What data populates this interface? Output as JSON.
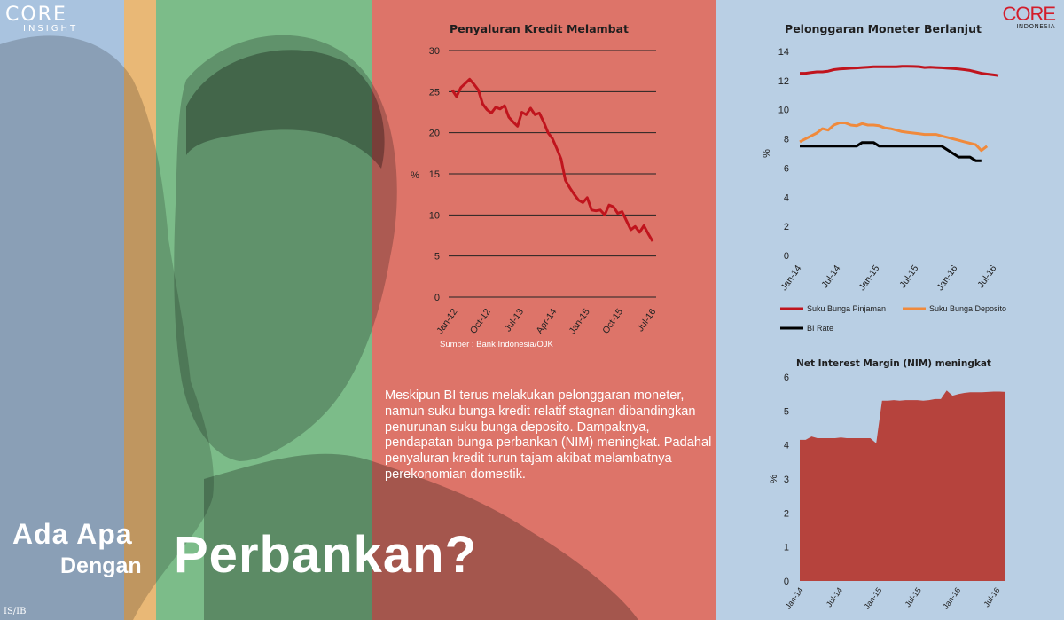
{
  "brand": {
    "core": "CORE",
    "insight": "INSIGHT",
    "logo": "CORE",
    "logo_sub": "INDONESIA"
  },
  "headline": {
    "line1": "Ada Apa",
    "line2": "Dengan",
    "line3": "Perbankan?"
  },
  "description": "Meskipun BI terus melakukan pelonggaran moneter, namun suku bunga kredit relatif stagnan dibandingkan penurunan suku bunga deposito. Dampaknya, pendapatan bunga perbankan (NIM) meningkat. Padahal penyaluran kredit turun tajam akibat melambatnya perekonomian domestik.",
  "initials": "IS/IB",
  "source": "Sumber : Bank Indonesia/OJK",
  "colors": {
    "red_series": "#c0141d",
    "orange_series": "#f08a3c",
    "black_series": "#000000",
    "area_fill": "#b6433d",
    "band_red": "#dd7469",
    "band_green": "#7cbc89",
    "band_blue": "#a9c3df",
    "band_yellow": "#e9b876"
  },
  "chart_data": [
    {
      "type": "line",
      "title": "Penyaluran Kredit Melambat",
      "ylabel": "%",
      "ylim": [
        0,
        30
      ],
      "yticks": [
        0,
        5,
        10,
        15,
        20,
        25,
        30
      ],
      "xtick_labels": [
        "Jan-12",
        "Oct-12",
        "Jul-13",
        "Apr-14",
        "Jan-15",
        "Oct-15",
        "Jul-16"
      ],
      "grid": true,
      "series": [
        {
          "values": [
            25.2,
            24.4,
            25.5,
            26.0,
            26.5,
            25.9,
            25.2,
            23.5,
            22.8,
            22.4,
            23.1,
            22.9,
            23.3,
            21.9,
            21.3,
            20.8,
            22.5,
            22.2,
            23.0,
            22.2,
            22.4,
            21.3,
            20.0,
            19.3,
            18.1,
            16.8,
            14.2,
            13.3,
            12.5,
            11.8,
            11.5,
            12.1,
            10.6,
            10.5,
            10.6,
            10.0,
            11.2,
            11.0,
            10.2,
            10.4,
            9.3,
            8.2,
            8.6,
            7.9,
            8.7,
            7.7,
            6.8
          ]
        }
      ]
    },
    {
      "type": "line",
      "title": "Pelonggaran Moneter Berlanjut",
      "ylabel": "%",
      "ylim": [
        0,
        14
      ],
      "yticks": [
        0,
        2,
        4,
        6,
        8,
        10,
        12,
        14
      ],
      "xtick_labels": [
        "Jan-14",
        "Jul-14",
        "Jan-15",
        "Jul-15",
        "Jan-16",
        "Jul-16"
      ],
      "grid": false,
      "legend_position": "bottom",
      "series": [
        {
          "name": "Suku Bunga Pinjaman",
          "values": [
            12.5,
            12.5,
            12.55,
            12.6,
            12.6,
            12.65,
            12.75,
            12.8,
            12.82,
            12.85,
            12.87,
            12.9,
            12.92,
            12.95,
            12.95,
            12.95,
            12.95,
            12.95,
            12.98,
            12.98,
            12.97,
            12.96,
            12.9,
            12.92,
            12.9,
            12.88,
            12.85,
            12.83,
            12.8,
            12.75,
            12.7,
            12.6,
            12.5,
            12.45,
            12.4,
            12.35
          ]
        },
        {
          "name": "Suku Bunga Deposito",
          "values": [
            7.8,
            8.0,
            8.2,
            8.4,
            8.7,
            8.6,
            8.95,
            9.1,
            9.1,
            8.95,
            8.9,
            9.05,
            8.95,
            8.95,
            8.9,
            8.75,
            8.7,
            8.6,
            8.5,
            8.45,
            8.4,
            8.35,
            8.3,
            8.3,
            8.3,
            8.2,
            8.1,
            8.0,
            7.9,
            7.8,
            7.7,
            7.6,
            7.2,
            7.5
          ]
        },
        {
          "name": "BI Rate",
          "values": [
            7.5,
            7.5,
            7.5,
            7.5,
            7.5,
            7.5,
            7.5,
            7.5,
            7.5,
            7.5,
            7.5,
            7.75,
            7.75,
            7.75,
            7.5,
            7.5,
            7.5,
            7.5,
            7.5,
            7.5,
            7.5,
            7.5,
            7.5,
            7.5,
            7.5,
            7.5,
            7.25,
            7.0,
            6.75,
            6.75,
            6.75,
            6.5,
            6.5
          ]
        }
      ]
    },
    {
      "type": "area",
      "title": "Net Interest Margin (NIM) meningkat",
      "ylabel": "%",
      "ylim": [
        0,
        6
      ],
      "yticks": [
        0,
        1,
        2,
        3,
        4,
        5,
        6
      ],
      "xtick_labels": [
        "Jan-14",
        "Jul-14",
        "Jan-15",
        "Jul-15",
        "Jan-16",
        "Jul-16"
      ],
      "grid": false,
      "series": [
        {
          "values": [
            4.15,
            4.15,
            4.25,
            4.2,
            4.2,
            4.2,
            4.2,
            4.22,
            4.2,
            4.2,
            4.2,
            4.2,
            4.2,
            4.05,
            5.3,
            5.3,
            5.32,
            5.3,
            5.32,
            5.32,
            5.32,
            5.3,
            5.32,
            5.35,
            5.35,
            5.6,
            5.45,
            5.5,
            5.53,
            5.55,
            5.55,
            5.55,
            5.56,
            5.57,
            5.57,
            5.56
          ]
        }
      ]
    }
  ]
}
